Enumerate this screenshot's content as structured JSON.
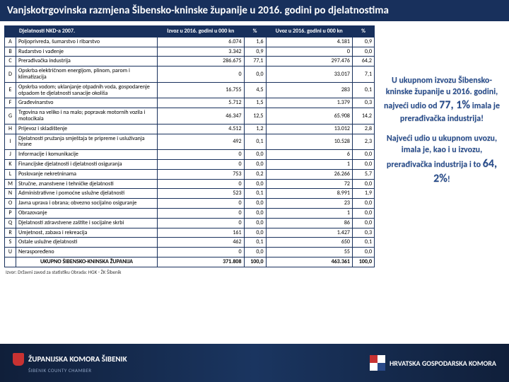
{
  "title": "Vanjskotrgovinska razmjena Šibensko-kninske županije u 2016. godini po djelatnostima",
  "headers": {
    "activity": "Djelatnosti NKD-a 2007.",
    "export": "Izvoz u 2016. godini u 000 kn",
    "export_pct": "%",
    "import": "Uvoz u 2016. godini u 000 kn",
    "import_pct": "%"
  },
  "rows": [
    {
      "c": "A",
      "a": "Poljoprivreda, šumarstvo i ribarstvo",
      "e": "6.074",
      "ep": "1,6",
      "i": "4.181",
      "ip": "0,9"
    },
    {
      "c": "B",
      "a": "Rudarstvo i vađenje",
      "e": "3.342",
      "ep": "0,9",
      "i": "0",
      "ip": "0,0"
    },
    {
      "c": "C",
      "a": "Prerađivačka industrija",
      "e": "286.675",
      "ep": "77,1",
      "i": "297.476",
      "ip": "64,2"
    },
    {
      "c": "D",
      "a": "Opskrba električnom energijom, plinom, parom i klimatizacija",
      "e": "0",
      "ep": "0,0",
      "i": "33.017",
      "ip": "7,1"
    },
    {
      "c": "E",
      "a": "Opskrba vodom; uklanjanje otpadnih voda, gospodarenje otpadom te djelatnosti sanacije okoliša",
      "e": "16.755",
      "ep": "4,5",
      "i": "283",
      "ip": "0,1"
    },
    {
      "c": "F",
      "a": "Građevinarstvo",
      "e": "5.712",
      "ep": "1,5",
      "i": "1.379",
      "ip": "0,3"
    },
    {
      "c": "G",
      "a": "Trgovina na veliko i na malo; popravak motornih vozila i motocikala",
      "e": "46.347",
      "ep": "12,5",
      "i": "65.908",
      "ip": "14,2"
    },
    {
      "c": "H",
      "a": "Prijevoz i skladištenje",
      "e": "4.512",
      "ep": "1,2",
      "i": "13.012",
      "ip": "2,8"
    },
    {
      "c": "I",
      "a": "Djelatnosti pružanja smještaja te pripreme i usluživanja hrane",
      "e": "492",
      "ep": "0,1",
      "i": "10.528",
      "ip": "2,3"
    },
    {
      "c": "J",
      "a": "Informacije i komunikacije",
      "e": "0",
      "ep": "0,0",
      "i": "6",
      "ip": "0,0"
    },
    {
      "c": "K",
      "a": "Financijske djelatnosti i djelatnosti osiguranja",
      "e": "0",
      "ep": "0,0",
      "i": "1",
      "ip": "0,0"
    },
    {
      "c": "L",
      "a": "Poslovanje nekretninama",
      "e": "753",
      "ep": "0,2",
      "i": "26.266",
      "ip": "5,7"
    },
    {
      "c": "M",
      "a": "Stručne, znanstvene i tehničke djelatnosti",
      "e": "0",
      "ep": "0,0",
      "i": "72",
      "ip": "0,0"
    },
    {
      "c": "N",
      "a": "Administrativne i pomoćne uslužne djelatnosti",
      "e": "523",
      "ep": "0,1",
      "i": "8.991",
      "ip": "1,9"
    },
    {
      "c": "O",
      "a": "Javna uprava i obrana; obvezno socijalno osiguranje",
      "e": "0",
      "ep": "0,0",
      "i": "23",
      "ip": "0,0"
    },
    {
      "c": "P",
      "a": "Obrazovanje",
      "e": "0",
      "ep": "0,0",
      "i": "1",
      "ip": "0,0"
    },
    {
      "c": "Q",
      "a": "Djelatnosti zdravstvene zaštite i socijalne skrbi",
      "e": "0",
      "ep": "0,0",
      "i": "86",
      "ip": "0,0"
    },
    {
      "c": "R",
      "a": "Umjetnost, zabava i rekreacija",
      "e": "161",
      "ep": "0,0",
      "i": "1.427",
      "ip": "0,3"
    },
    {
      "c": "S",
      "a": "Ostale uslužne djelatnosti",
      "e": "462",
      "ep": "0,1",
      "i": "650",
      "ip": "0,1"
    },
    {
      "c": "U",
      "a": "Neraspoređeno",
      "e": "0",
      "ep": "0,0",
      "i": "55",
      "ip": "0,0"
    }
  ],
  "total": {
    "a": "UKUPNO ŠIBENSKO-KNINSKA ŽUPANIJA",
    "e": "371.808",
    "ep": "100,0",
    "i": "463.361",
    "ip": "100,0"
  },
  "callout1": {
    "t1": "U ukupnom izvozu Šibensko-kninske županije u 2016. godini, najveći udio od ",
    "pct": "77, 1%",
    "t2": " imala je prerađivačka industrija!"
  },
  "callout2": {
    "t1": "Najveći udio u ukupnom uvozu, imala je, kao i u izvozu, prerađivačka industrija i to ",
    "pct": "64, 2%",
    "t2": "!"
  },
  "source": "Izvor: Državni zavod za statistiku Obrada: HGK - ŽK Šibenik",
  "footer": {
    "left_main": "ŽUPANIJSKA KOMORA ŠIBENIK",
    "left_sub": "ŠIBENIK COUNTY CHAMBER",
    "right": "HRVATSKA GOSPODARSKA KOMORA"
  }
}
